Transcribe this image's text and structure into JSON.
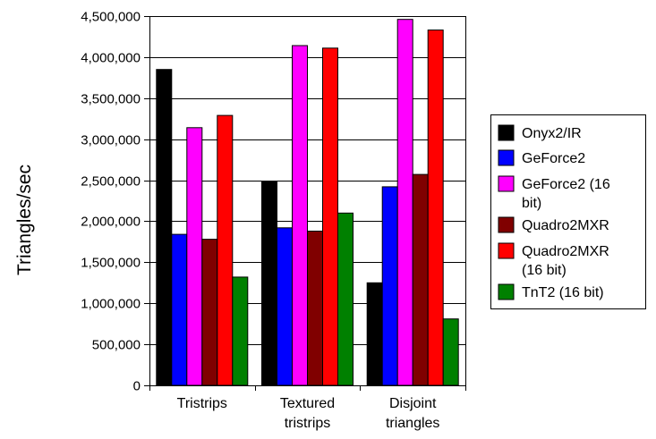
{
  "chart_data": {
    "type": "bar",
    "title": "",
    "xlabel": "",
    "ylabel": "Triangles/sec",
    "ylim": [
      0,
      4500000
    ],
    "ytick_step": 500000,
    "grid": "horizontal",
    "legend_position": "right",
    "categories": [
      [
        "Tristrips"
      ],
      [
        "Textured",
        "tristrips"
      ],
      [
        "Disjoint",
        "triangles"
      ]
    ],
    "series": [
      {
        "name": [
          "Onyx2/IR"
        ],
        "color": "#000000",
        "values": [
          3850000,
          2490000,
          1250000
        ]
      },
      {
        "name": [
          "GeForce2"
        ],
        "color": "#0000ff",
        "values": [
          1840000,
          1920000,
          2420000
        ]
      },
      {
        "name": [
          "GeForce2 (16",
          "bit)"
        ],
        "color": "#ff00ff",
        "values": [
          3140000,
          4140000,
          4460000
        ]
      },
      {
        "name": [
          "Quadro2MXR"
        ],
        "color": "#800000",
        "values": [
          1780000,
          1880000,
          2570000
        ]
      },
      {
        "name": [
          "Quadro2MXR",
          "(16 bit)"
        ],
        "color": "#ff0000",
        "values": [
          3290000,
          4110000,
          4330000
        ]
      },
      {
        "name": [
          "TnT2 (16 bit)"
        ],
        "color": "#008000",
        "values": [
          1320000,
          2100000,
          810000
        ]
      }
    ]
  }
}
